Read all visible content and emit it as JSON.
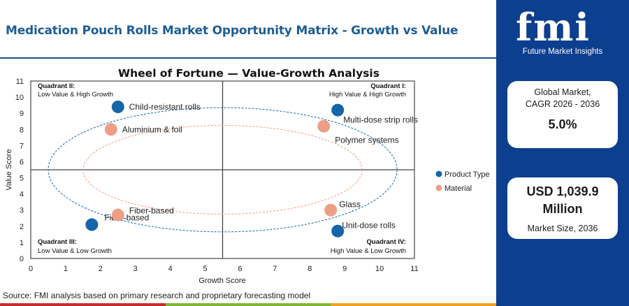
{
  "header": {
    "title": "Medication Pouch Rolls Market Opportunity Matrix - Growth vs Value"
  },
  "brand": {
    "logo_text": "fmi",
    "tagline": "Future Market Insights",
    "colors": {
      "panel": "#0d3f8f",
      "title": "#1d5d94"
    }
  },
  "stats": {
    "cagr_label_line1": "Global Market,",
    "cagr_label_line2": "CAGR 2026 - 2036",
    "cagr_value": "5.0%",
    "market_value_line1": "USD 1,039.9",
    "market_value_line2": "Million",
    "market_size_label": "Market Size, 2036"
  },
  "chart_data": {
    "type": "scatter",
    "title": "Wheel of Fortune — Value-Growth Analysis",
    "xlabel": "Growth Score",
    "ylabel": "Value Score",
    "xlim": [
      0,
      11
    ],
    "ylim": [
      0,
      11
    ],
    "xticks": [
      0,
      1,
      2,
      3,
      4,
      5,
      6,
      7,
      8,
      9,
      10,
      11
    ],
    "yticks": [
      0,
      1,
      2,
      3,
      4,
      5,
      6,
      7,
      8,
      9,
      10,
      11
    ],
    "divider_x": 5.5,
    "divider_y": 5.5,
    "legend_position": "right",
    "series": [
      {
        "name": "Product Type",
        "color": "#1565a8",
        "points": [
          {
            "label": "Child-resistant rolls",
            "x": 2.5,
            "y": 9.4
          },
          {
            "label": "Multi-dose strip rolls",
            "x": 8.8,
            "y": 9.2
          },
          {
            "label": "Unit-dose rolls",
            "x": 8.8,
            "y": 1.7
          },
          {
            "label": "Fiber-based",
            "x": 1.75,
            "y": 2.1
          }
        ]
      },
      {
        "name": "Material",
        "color": "#ee9e86",
        "points": [
          {
            "label": "Aluminium & foil",
            "x": 2.3,
            "y": 8.0
          },
          {
            "label": "Polymer systems",
            "x": 8.4,
            "y": 8.2
          },
          {
            "label": "Glass",
            "x": 8.6,
            "y": 3.0
          },
          {
            "label": "Fiber-based",
            "x": 2.5,
            "y": 2.7
          }
        ]
      }
    ],
    "quadrants": [
      {
        "id": "q2",
        "title": "Quadrant II:",
        "desc": "Low Value & High Growth"
      },
      {
        "id": "q1",
        "title": "Quadrant I:",
        "desc": "High Value & High Growth"
      },
      {
        "id": "q3",
        "title": "Quadrant III:",
        "desc": "Low Value & Low Growth"
      },
      {
        "id": "q4",
        "title": "Quadrant IV:",
        "desc": "High Value & Low Growth"
      }
    ],
    "source": "Source: FMI analysis based on primary research and proprietary forecasting model"
  }
}
